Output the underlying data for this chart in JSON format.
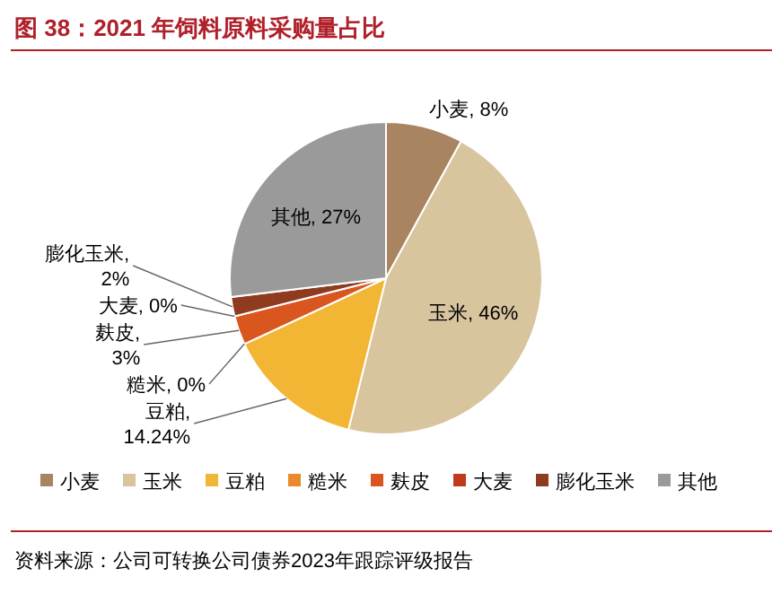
{
  "chart_data": {
    "type": "pie",
    "title": "图 38：2021 年饲料原料采购量占比",
    "categories": [
      "小麦",
      "玉米",
      "豆粕",
      "糙米",
      "麸皮",
      "大麦",
      "膨化玉米",
      "其他"
    ],
    "values": [
      8,
      46,
      14.24,
      0,
      3,
      0,
      2,
      27
    ],
    "value_labels": [
      "小麦, 8%",
      "玉米, 46%",
      "豆粕, 14.24%",
      "糙米, 0%",
      "麸皮, 3%",
      "大麦, 0%",
      "膨化玉米, 2%",
      "其他, 27%"
    ],
    "colors": [
      "#a88460",
      "#d8c59e",
      "#f2b634",
      "#ea8a2c",
      "#d9561f",
      "#c13a1c",
      "#8e3b1f",
      "#9a9a9a"
    ],
    "legend": "bottom",
    "annotations": [
      "资料来源：公司可转换公司债券2023年跟踪评级报告"
    ]
  }
}
